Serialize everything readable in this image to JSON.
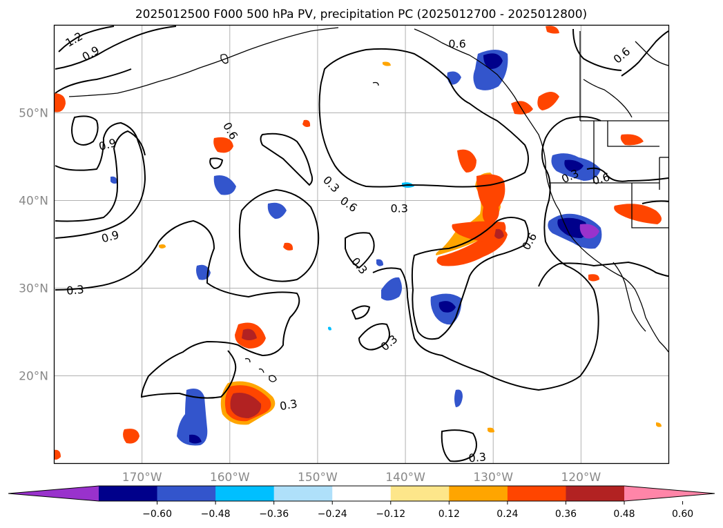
{
  "title": "2025012500 F000 500 hPa PV, precipitation PC (2025012700 - 2025012800)",
  "map": {
    "lon_range": [
      -180,
      -110
    ],
    "lat_range": [
      10,
      60
    ],
    "lon_ticks": [
      {
        "value": -170,
        "label": "170°W"
      },
      {
        "value": -160,
        "label": "160°W"
      },
      {
        "value": -150,
        "label": "150°W"
      },
      {
        "value": -140,
        "label": "140°W"
      },
      {
        "value": -130,
        "label": "130°W"
      },
      {
        "value": -120,
        "label": "120°W"
      }
    ],
    "lat_ticks": [
      {
        "value": 20,
        "label": "20°N"
      },
      {
        "value": 30,
        "label": "30°N"
      },
      {
        "value": 40,
        "label": "40°N"
      },
      {
        "value": 50,
        "label": "50°N"
      }
    ],
    "grid": true
  },
  "contour_labels": [
    {
      "text": "1.2",
      "lon": -177.7,
      "lat": 58.3,
      "rot": -30
    },
    {
      "text": "0.9",
      "lon": -175.8,
      "lat": 56.7,
      "rot": -30
    },
    {
      "text": "0.6",
      "lon": -160.0,
      "lat": 47.9,
      "rot": 60
    },
    {
      "text": "0.9",
      "lon": -173.9,
      "lat": 46.3,
      "rot": -15
    },
    {
      "text": "0.3",
      "lon": -148.5,
      "lat": 41.8,
      "rot": 45
    },
    {
      "text": "0.6",
      "lon": -146.5,
      "lat": 39.5,
      "rot": 35
    },
    {
      "text": "0.3",
      "lon": -140.7,
      "lat": 39.0,
      "rot": 0
    },
    {
      "text": "0.9",
      "lon": -173.6,
      "lat": 35.8,
      "rot": -15
    },
    {
      "text": "0.3",
      "lon": -145.3,
      "lat": 32.5,
      "rot": 50
    },
    {
      "text": "0.3",
      "lon": -177.6,
      "lat": 29.7,
      "rot": -5
    },
    {
      "text": "0.3",
      "lon": -153.3,
      "lat": 16.6,
      "rot": -10
    },
    {
      "text": "0.3",
      "lon": -141.8,
      "lat": 23.7,
      "rot": -40
    },
    {
      "text": "0.3",
      "lon": -131.8,
      "lat": 10.6,
      "rot": -5
    },
    {
      "text": "0.6",
      "lon": -134.1,
      "lat": 57.8,
      "rot": 0
    },
    {
      "text": "0.6",
      "lon": -115.3,
      "lat": 56.5,
      "rot": -40
    },
    {
      "text": "0.6",
      "lon": -125.8,
      "lat": 35.3,
      "rot": -60
    },
    {
      "text": "0.6",
      "lon": -117.7,
      "lat": 42.4,
      "rot": -15
    },
    {
      "text": "0.3",
      "lon": -121.2,
      "lat": 42.7,
      "rot": -25
    }
  ],
  "colorbar": {
    "levels": [
      "-0.60",
      "-0.48",
      "-0.36",
      "-0.24",
      "-0.12",
      "0.12",
      "0.24",
      "0.36",
      "0.48",
      "0.60"
    ],
    "colors": [
      "#9932cc",
      "#00008b",
      "#3355cc",
      "#00bfff",
      "#afe0fa",
      "#ffffff",
      "#fde68a",
      "#ffa500",
      "#ff4500",
      "#b22222",
      "#ff85a8"
    ]
  }
}
